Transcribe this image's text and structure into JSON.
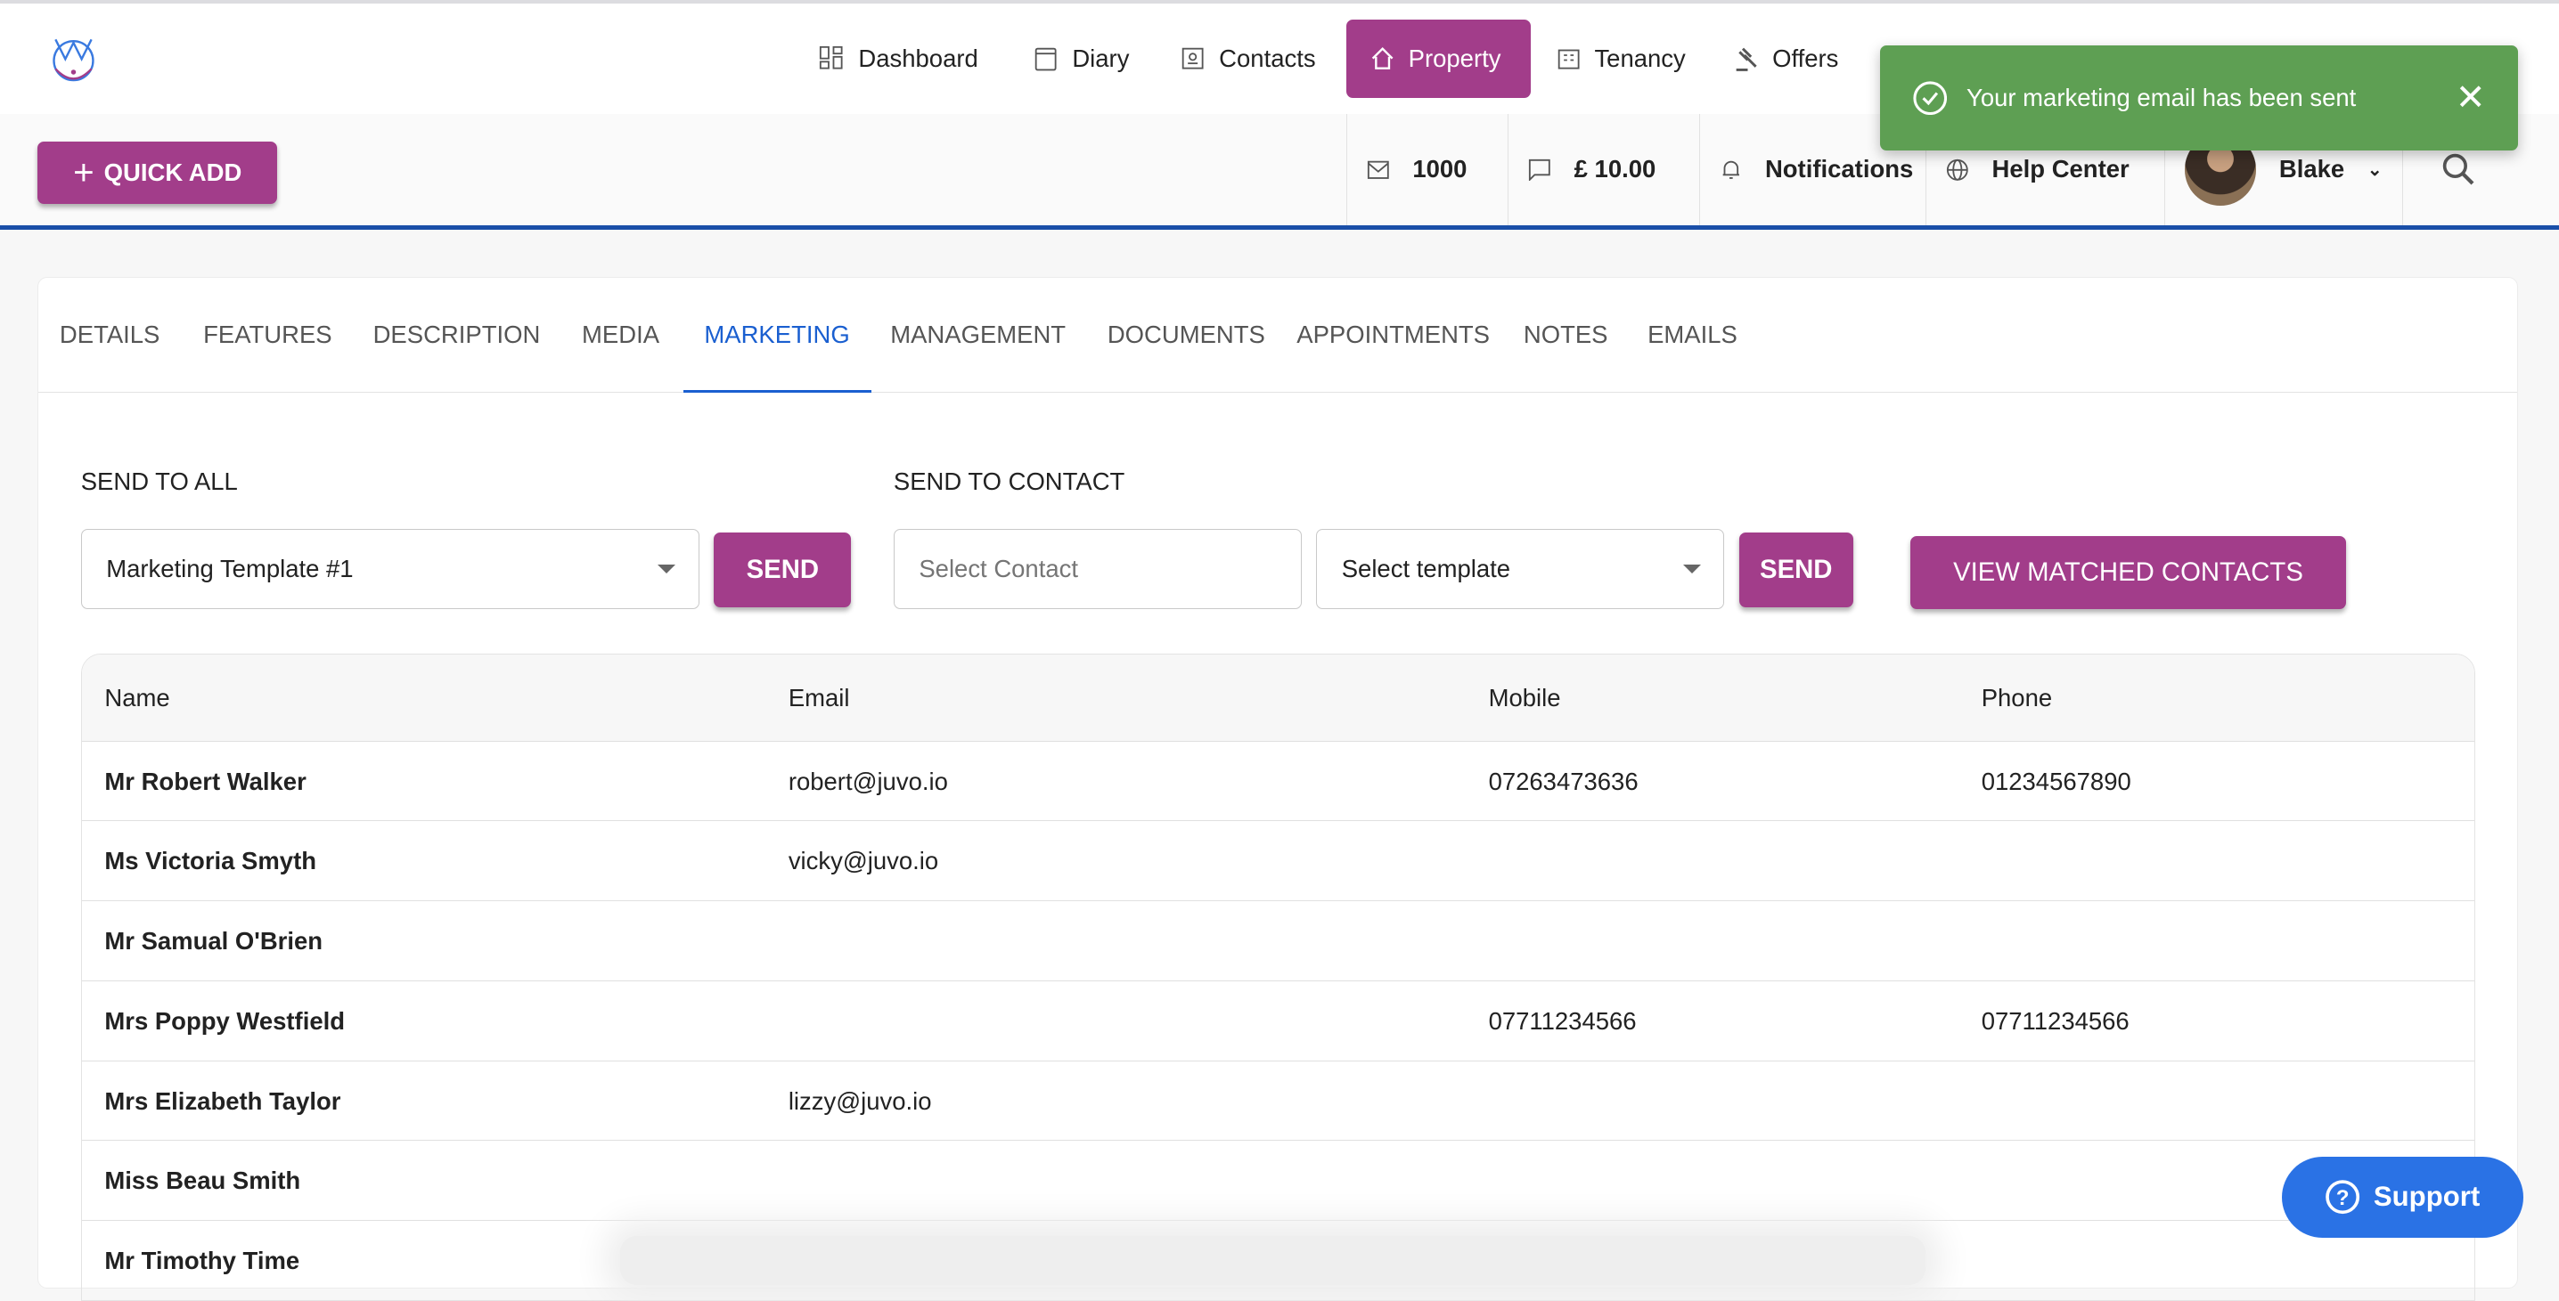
{
  "nav": [
    {
      "label": "Dashboard",
      "icon": "dashboard-icon"
    },
    {
      "label": "Diary",
      "icon": "calendar-icon"
    },
    {
      "label": "Contacts",
      "icon": "contacts-icon"
    },
    {
      "label": "Property",
      "icon": "home-icon",
      "active": true
    },
    {
      "label": "Tenancy",
      "icon": "building-icon"
    },
    {
      "label": "Offers",
      "icon": "gavel-icon"
    }
  ],
  "toolbar": {
    "quick_add": "QUICK ADD",
    "email_credits": "1000",
    "sms_credits": "£ 10.00",
    "notifications": "Notifications",
    "help": "Help Center",
    "user": "Blake"
  },
  "toast": {
    "message": "Your marketing email has been sent",
    "color": "#5e9f53"
  },
  "tabs": [
    "DETAILS",
    "FEATURES",
    "DESCRIPTION",
    "MEDIA",
    "MARKETING",
    "MANAGEMENT",
    "DOCUMENTS",
    "APPOINTMENTS",
    "NOTES",
    "EMAILS"
  ],
  "active_tab": "MARKETING",
  "marketing": {
    "send_all_label": "SEND TO ALL",
    "template_value": "Marketing Template #1",
    "send": "SEND",
    "send_contact_label": "SEND TO CONTACT",
    "contact_placeholder": "Select Contact",
    "template_placeholder": "Select template",
    "view_matched": "VIEW MATCHED CONTACTS"
  },
  "table": {
    "headers": [
      "Name",
      "Email",
      "Mobile",
      "Phone"
    ],
    "rows": [
      [
        "Mr Robert Walker",
        "robert@juvo.io",
        "07263473636",
        "01234567890"
      ],
      [
        "Ms Victoria Smyth",
        "vicky@juvo.io",
        "",
        ""
      ],
      [
        "Mr Samual O'Brien",
        "",
        "",
        ""
      ],
      [
        "Mrs Poppy Westfield",
        "",
        "07711234566",
        "07711234566"
      ],
      [
        "Mrs Elizabeth Taylor",
        "lizzy@juvo.io",
        "",
        ""
      ],
      [
        "Miss Beau Smith",
        "",
        "",
        ""
      ],
      [
        "Mr Timothy Time",
        "",
        "",
        ""
      ]
    ]
  },
  "support": "Support",
  "colors": {
    "accent": "#a23d8a",
    "primary_blue": "#1a5fd0",
    "support": "#2a72e5"
  }
}
